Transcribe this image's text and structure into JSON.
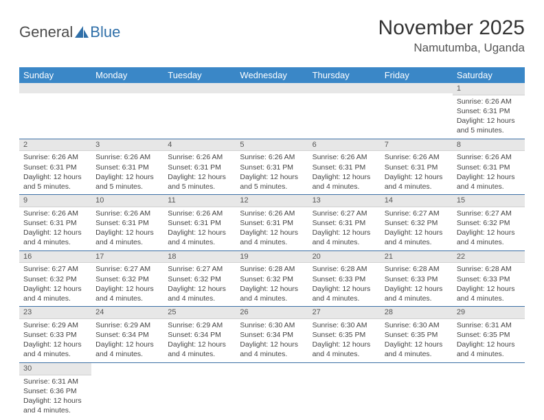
{
  "logo": {
    "text1": "General",
    "text2": "Blue"
  },
  "title": "November 2025",
  "location": "Namutumba, Uganda",
  "colors": {
    "header_bg": "#3a87c7",
    "header_text": "#ffffff",
    "daynum_bg": "#e7e7e7",
    "cell_border": "#3a6ea5",
    "logo_accent": "#2f6fa8"
  },
  "weekdays": [
    "Sunday",
    "Monday",
    "Tuesday",
    "Wednesday",
    "Thursday",
    "Friday",
    "Saturday"
  ],
  "weeks": [
    [
      null,
      null,
      null,
      null,
      null,
      null,
      {
        "n": "1",
        "sr": "6:26 AM",
        "ss": "6:31 PM",
        "dl": "12 hours and 5 minutes."
      }
    ],
    [
      {
        "n": "2",
        "sr": "6:26 AM",
        "ss": "6:31 PM",
        "dl": "12 hours and 5 minutes."
      },
      {
        "n": "3",
        "sr": "6:26 AM",
        "ss": "6:31 PM",
        "dl": "12 hours and 5 minutes."
      },
      {
        "n": "4",
        "sr": "6:26 AM",
        "ss": "6:31 PM",
        "dl": "12 hours and 5 minutes."
      },
      {
        "n": "5",
        "sr": "6:26 AM",
        "ss": "6:31 PM",
        "dl": "12 hours and 5 minutes."
      },
      {
        "n": "6",
        "sr": "6:26 AM",
        "ss": "6:31 PM",
        "dl": "12 hours and 4 minutes."
      },
      {
        "n": "7",
        "sr": "6:26 AM",
        "ss": "6:31 PM",
        "dl": "12 hours and 4 minutes."
      },
      {
        "n": "8",
        "sr": "6:26 AM",
        "ss": "6:31 PM",
        "dl": "12 hours and 4 minutes."
      }
    ],
    [
      {
        "n": "9",
        "sr": "6:26 AM",
        "ss": "6:31 PM",
        "dl": "12 hours and 4 minutes."
      },
      {
        "n": "10",
        "sr": "6:26 AM",
        "ss": "6:31 PM",
        "dl": "12 hours and 4 minutes."
      },
      {
        "n": "11",
        "sr": "6:26 AM",
        "ss": "6:31 PM",
        "dl": "12 hours and 4 minutes."
      },
      {
        "n": "12",
        "sr": "6:26 AM",
        "ss": "6:31 PM",
        "dl": "12 hours and 4 minutes."
      },
      {
        "n": "13",
        "sr": "6:27 AM",
        "ss": "6:31 PM",
        "dl": "12 hours and 4 minutes."
      },
      {
        "n": "14",
        "sr": "6:27 AM",
        "ss": "6:32 PM",
        "dl": "12 hours and 4 minutes."
      },
      {
        "n": "15",
        "sr": "6:27 AM",
        "ss": "6:32 PM",
        "dl": "12 hours and 4 minutes."
      }
    ],
    [
      {
        "n": "16",
        "sr": "6:27 AM",
        "ss": "6:32 PM",
        "dl": "12 hours and 4 minutes."
      },
      {
        "n": "17",
        "sr": "6:27 AM",
        "ss": "6:32 PM",
        "dl": "12 hours and 4 minutes."
      },
      {
        "n": "18",
        "sr": "6:27 AM",
        "ss": "6:32 PM",
        "dl": "12 hours and 4 minutes."
      },
      {
        "n": "19",
        "sr": "6:28 AM",
        "ss": "6:32 PM",
        "dl": "12 hours and 4 minutes."
      },
      {
        "n": "20",
        "sr": "6:28 AM",
        "ss": "6:33 PM",
        "dl": "12 hours and 4 minutes."
      },
      {
        "n": "21",
        "sr": "6:28 AM",
        "ss": "6:33 PM",
        "dl": "12 hours and 4 minutes."
      },
      {
        "n": "22",
        "sr": "6:28 AM",
        "ss": "6:33 PM",
        "dl": "12 hours and 4 minutes."
      }
    ],
    [
      {
        "n": "23",
        "sr": "6:29 AM",
        "ss": "6:33 PM",
        "dl": "12 hours and 4 minutes."
      },
      {
        "n": "24",
        "sr": "6:29 AM",
        "ss": "6:34 PM",
        "dl": "12 hours and 4 minutes."
      },
      {
        "n": "25",
        "sr": "6:29 AM",
        "ss": "6:34 PM",
        "dl": "12 hours and 4 minutes."
      },
      {
        "n": "26",
        "sr": "6:30 AM",
        "ss": "6:34 PM",
        "dl": "12 hours and 4 minutes."
      },
      {
        "n": "27",
        "sr": "6:30 AM",
        "ss": "6:35 PM",
        "dl": "12 hours and 4 minutes."
      },
      {
        "n": "28",
        "sr": "6:30 AM",
        "ss": "6:35 PM",
        "dl": "12 hours and 4 minutes."
      },
      {
        "n": "29",
        "sr": "6:31 AM",
        "ss": "6:35 PM",
        "dl": "12 hours and 4 minutes."
      }
    ],
    [
      {
        "n": "30",
        "sr": "6:31 AM",
        "ss": "6:36 PM",
        "dl": "12 hours and 4 minutes."
      },
      null,
      null,
      null,
      null,
      null,
      null
    ]
  ],
  "labels": {
    "sunrise": "Sunrise: ",
    "sunset": "Sunset: ",
    "daylight": "Daylight: "
  }
}
